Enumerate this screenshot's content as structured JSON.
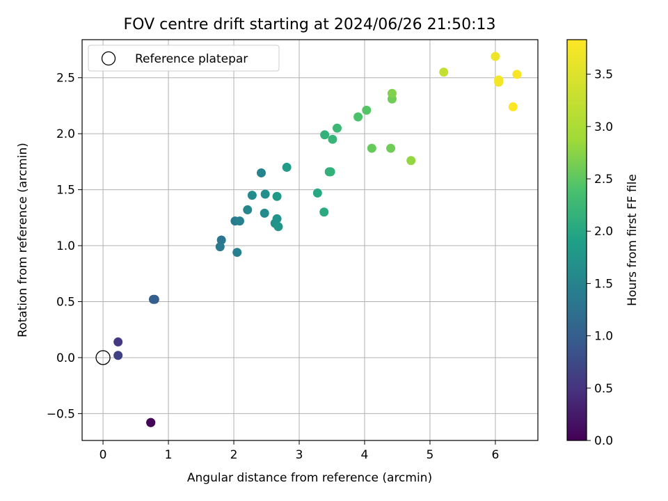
{
  "chart_data": {
    "type": "scatter",
    "title": "FOV centre drift starting at 2024/06/26 21:50:13",
    "xlabel": "Angular distance from reference (arcmin)",
    "ylabel": "Rotation from reference (arcmin)",
    "xlim": [
      -0.32,
      6.65
    ],
    "ylim": [
      -0.74,
      2.84
    ],
    "x_ticks": [
      0,
      1,
      2,
      3,
      4,
      5,
      6
    ],
    "y_ticks": [
      -0.5,
      0.0,
      0.5,
      1.0,
      1.5,
      2.0,
      2.5
    ],
    "x_tick_labels": [
      "0",
      "1",
      "2",
      "3",
      "4",
      "5",
      "6"
    ],
    "y_tick_labels": [
      "−0.5",
      "0.0",
      "0.5",
      "1.0",
      "1.5",
      "2.0",
      "2.5"
    ],
    "grid": true,
    "legend": {
      "position": "top-left",
      "entries": [
        "Reference platepar"
      ]
    },
    "reference_point": {
      "x": 0.0,
      "y": 0.0,
      "label": "Reference platepar"
    },
    "colorbar": {
      "label": "Hours from first FF file",
      "min": 0.0,
      "max": 3.83,
      "ticks": [
        0.0,
        0.5,
        1.0,
        1.5,
        2.0,
        2.5,
        3.0,
        3.5
      ],
      "tick_labels": [
        "0.0",
        "0.5",
        "1.0",
        "1.5",
        "2.0",
        "2.5",
        "3.0",
        "3.5"
      ],
      "colormap": "viridis"
    },
    "points": [
      {
        "x": 0.73,
        "y": -0.58,
        "c": 0.0
      },
      {
        "x": 0.73,
        "y": -0.58,
        "c": 0.05
      },
      {
        "x": 0.23,
        "y": 0.14,
        "c": 0.55
      },
      {
        "x": 0.23,
        "y": 0.02,
        "c": 0.65
      },
      {
        "x": 0.79,
        "y": 0.52,
        "c": 0.95
      },
      {
        "x": 0.77,
        "y": 0.52,
        "c": 1.0
      },
      {
        "x": 1.81,
        "y": 1.05,
        "c": 1.3
      },
      {
        "x": 1.79,
        "y": 0.99,
        "c": 1.35
      },
      {
        "x": 2.02,
        "y": 1.22,
        "c": 1.4
      },
      {
        "x": 2.09,
        "y": 1.22,
        "c": 1.45
      },
      {
        "x": 2.05,
        "y": 0.94,
        "c": 1.45
      },
      {
        "x": 2.42,
        "y": 1.65,
        "c": 1.5
      },
      {
        "x": 2.21,
        "y": 1.32,
        "c": 1.55
      },
      {
        "x": 2.28,
        "y": 1.45,
        "c": 1.6
      },
      {
        "x": 2.47,
        "y": 1.29,
        "c": 1.6
      },
      {
        "x": 2.48,
        "y": 1.46,
        "c": 1.65
      },
      {
        "x": 2.63,
        "y": 1.2,
        "c": 1.7
      },
      {
        "x": 2.66,
        "y": 1.24,
        "c": 1.72
      },
      {
        "x": 2.68,
        "y": 1.17,
        "c": 1.75
      },
      {
        "x": 2.66,
        "y": 1.44,
        "c": 1.8
      },
      {
        "x": 2.81,
        "y": 1.7,
        "c": 1.85
      },
      {
        "x": 3.28,
        "y": 1.47,
        "c": 2.0
      },
      {
        "x": 3.38,
        "y": 1.3,
        "c": 2.05
      },
      {
        "x": 3.46,
        "y": 1.66,
        "c": 2.1
      },
      {
        "x": 3.48,
        "y": 1.66,
        "c": 2.15
      },
      {
        "x": 3.39,
        "y": 1.99,
        "c": 2.15
      },
      {
        "x": 3.51,
        "y": 1.95,
        "c": 2.2
      },
      {
        "x": 3.58,
        "y": 2.05,
        "c": 2.25
      },
      {
        "x": 3.9,
        "y": 2.15,
        "c": 2.4
      },
      {
        "x": 4.03,
        "y": 2.21,
        "c": 2.45
      },
      {
        "x": 4.11,
        "y": 1.87,
        "c": 2.55
      },
      {
        "x": 4.4,
        "y": 1.87,
        "c": 2.6
      },
      {
        "x": 4.42,
        "y": 2.31,
        "c": 2.6
      },
      {
        "x": 4.42,
        "y": 2.36,
        "c": 2.7
      },
      {
        "x": 4.71,
        "y": 1.76,
        "c": 2.8
      },
      {
        "x": 5.21,
        "y": 2.55,
        "c": 3.25
      },
      {
        "x": 6.0,
        "y": 2.69,
        "c": 3.65
      },
      {
        "x": 6.05,
        "y": 2.46,
        "c": 3.7
      },
      {
        "x": 6.05,
        "y": 2.48,
        "c": 3.72
      },
      {
        "x": 6.33,
        "y": 2.53,
        "c": 3.78
      },
      {
        "x": 6.27,
        "y": 2.24,
        "c": 3.83
      }
    ]
  }
}
